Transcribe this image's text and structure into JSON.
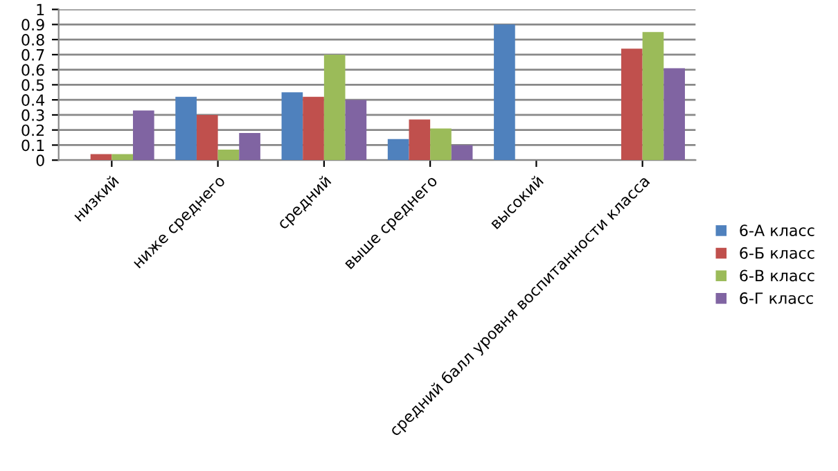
{
  "chart_data": {
    "type": "bar",
    "categories": [
      "низкий",
      "ниже среднего",
      "средний",
      "выше среднего",
      "высокий",
      "средний балл уровня воспитанности класса"
    ],
    "series": [
      {
        "name": "6-А класс",
        "color": "#4f81bd",
        "values": [
          0,
          0.42,
          0.45,
          0.14,
          0.9,
          0
        ]
      },
      {
        "name": "6-Б класс",
        "color": "#c0504d",
        "values": [
          0.04,
          0.3,
          0.42,
          0.27,
          0,
          0.74
        ]
      },
      {
        "name": "6-В класс",
        "color": "#9bbb59",
        "values": [
          0.04,
          0.07,
          0.7,
          0.21,
          0,
          0.85
        ]
      },
      {
        "name": "6-Г класс",
        "color": "#8064a2",
        "values": [
          0.33,
          0.18,
          0.4,
          0.1,
          0,
          0.61
        ]
      }
    ],
    "ylim": [
      0,
      1
    ],
    "yticks": [
      0,
      0.1,
      0.2,
      0.3,
      0.4,
      0.5,
      0.6,
      0.7,
      0.8,
      0.9,
      1
    ],
    "grid": "y",
    "legend": "right"
  }
}
